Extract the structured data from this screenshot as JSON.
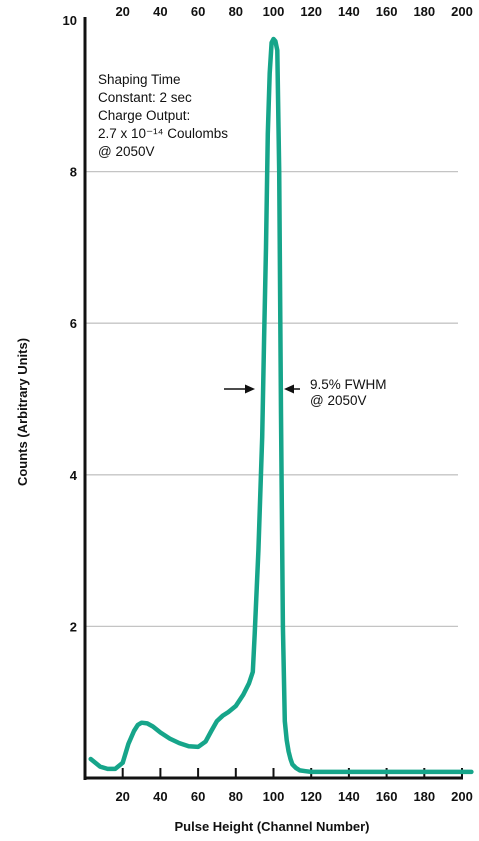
{
  "chart_data": {
    "type": "line",
    "xlabel": "Pulse Height (Channel Number)",
    "ylabel": "Counts (Arbitrary Units)",
    "xlim": [
      0,
      200
    ],
    "ylim": [
      0,
      10
    ],
    "x_ticks": [
      20,
      40,
      60,
      80,
      100,
      120,
      140,
      160,
      180,
      200
    ],
    "y_ticks": [
      2,
      4,
      6,
      8,
      10
    ],
    "grid": "horizontal",
    "line_color": "#16a58a",
    "series": [
      {
        "x": [
          3,
          8,
          12,
          16,
          20,
          23,
          26,
          28,
          30,
          33,
          36,
          40,
          45,
          50,
          55,
          60,
          64,
          67,
          70,
          73,
          76,
          80,
          84,
          87,
          89,
          90,
          92,
          94,
          95,
          96,
          97,
          98,
          99,
          100,
          101,
          102,
          103,
          104,
          105,
          106,
          107,
          108,
          109,
          110,
          112,
          114,
          117,
          120,
          130,
          140,
          150,
          160,
          170,
          180,
          190,
          200,
          205
        ],
        "y": [
          0.25,
          0.15,
          0.12,
          0.12,
          0.2,
          0.45,
          0.62,
          0.7,
          0.73,
          0.72,
          0.68,
          0.6,
          0.52,
          0.46,
          0.42,
          0.41,
          0.48,
          0.62,
          0.75,
          0.82,
          0.87,
          0.95,
          1.1,
          1.25,
          1.4,
          1.9,
          3.0,
          4.5,
          5.8,
          7.0,
          8.5,
          9.3,
          9.7,
          9.75,
          9.72,
          9.6,
          8.0,
          4.8,
          2.0,
          0.75,
          0.5,
          0.35,
          0.25,
          0.18,
          0.13,
          0.1,
          0.09,
          0.08,
          0.08,
          0.08,
          0.08,
          0.08,
          0.08,
          0.08,
          0.08,
          0.08,
          0.08
        ]
      }
    ],
    "annotations": {
      "top_left": [
        "Shaping Time",
        "Constant: 2 sec",
        "Charge Output:",
        "2.7 x 10⁻¹⁴ Coulombs",
        "@ 2050V"
      ],
      "fwhm": [
        "9.5%  FWHM",
        "@ 2050V"
      ]
    }
  }
}
